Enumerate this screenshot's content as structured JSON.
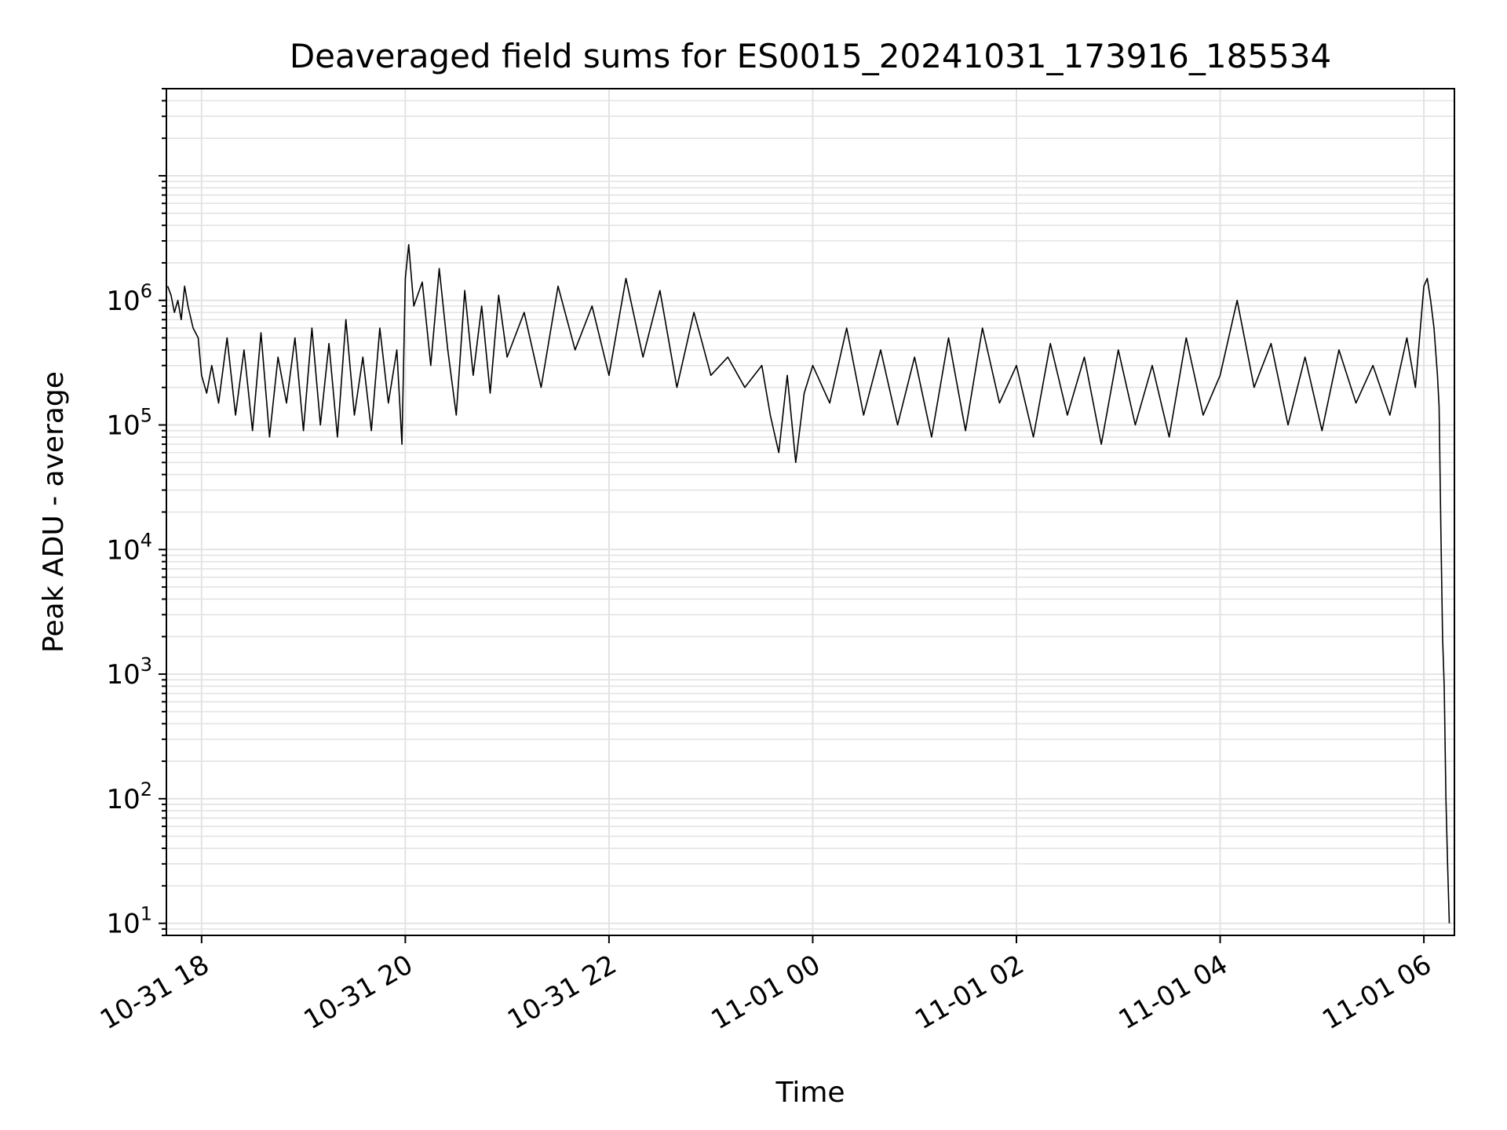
{
  "chart_data": {
    "type": "line",
    "title": "Deaveraged field sums for ES0015_20241031_173916_185534",
    "xlabel": "Time",
    "ylabel": "Peak ADU - average",
    "yscale": "log",
    "grid": true,
    "xlim": [
      "2024-10-31T17:39:16",
      "2024-11-01T06:18:00"
    ],
    "ylim": [
      8,
      50000000
    ],
    "x_ticks": [
      {
        "time": "2024-10-31T18:00",
        "label": "10-31 18"
      },
      {
        "time": "2024-10-31T20:00",
        "label": "10-31 20"
      },
      {
        "time": "2024-10-31T22:00",
        "label": "10-31 22"
      },
      {
        "time": "2024-11-01T00:00",
        "label": "11-01 00"
      },
      {
        "time": "2024-11-01T02:00",
        "label": "11-01 02"
      },
      {
        "time": "2024-11-01T04:00",
        "label": "11-01 04"
      },
      {
        "time": "2024-11-01T06:00",
        "label": "11-01 06"
      }
    ],
    "y_ticks": [
      {
        "value": 10,
        "base": "10",
        "exp": "1"
      },
      {
        "value": 100,
        "base": "10",
        "exp": "2"
      },
      {
        "value": 1000,
        "base": "10",
        "exp": "3"
      },
      {
        "value": 10000,
        "base": "10",
        "exp": "4"
      },
      {
        "value": 100000,
        "base": "10",
        "exp": "5"
      },
      {
        "value": 1000000,
        "base": "10",
        "exp": "6"
      }
    ],
    "series": [
      {
        "color": "#000000",
        "x": [
          "2024-10-31T17:40",
          "2024-10-31T17:42",
          "2024-10-31T17:44",
          "2024-10-31T17:46",
          "2024-10-31T17:48",
          "2024-10-31T17:50",
          "2024-10-31T17:52",
          "2024-10-31T17:55",
          "2024-10-31T17:58",
          "2024-10-31T18:00",
          "2024-10-31T18:03",
          "2024-10-31T18:06",
          "2024-10-31T18:10",
          "2024-10-31T18:15",
          "2024-10-31T18:20",
          "2024-10-31T18:25",
          "2024-10-31T18:30",
          "2024-10-31T18:35",
          "2024-10-31T18:40",
          "2024-10-31T18:45",
          "2024-10-31T18:50",
          "2024-10-31T18:55",
          "2024-10-31T19:00",
          "2024-10-31T19:05",
          "2024-10-31T19:10",
          "2024-10-31T19:15",
          "2024-10-31T19:20",
          "2024-10-31T19:25",
          "2024-10-31T19:30",
          "2024-10-31T19:35",
          "2024-10-31T19:40",
          "2024-10-31T19:45",
          "2024-10-31T19:50",
          "2024-10-31T19:55",
          "2024-10-31T19:58",
          "2024-10-31T20:00",
          "2024-10-31T20:02",
          "2024-10-31T20:05",
          "2024-10-31T20:10",
          "2024-10-31T20:15",
          "2024-10-31T20:20",
          "2024-10-31T20:25",
          "2024-10-31T20:30",
          "2024-10-31T20:35",
          "2024-10-31T20:40",
          "2024-10-31T20:45",
          "2024-10-31T20:50",
          "2024-10-31T20:55",
          "2024-10-31T21:00",
          "2024-10-31T21:10",
          "2024-10-31T21:20",
          "2024-10-31T21:30",
          "2024-10-31T21:40",
          "2024-10-31T21:50",
          "2024-10-31T22:00",
          "2024-10-31T22:10",
          "2024-10-31T22:20",
          "2024-10-31T22:30",
          "2024-10-31T22:40",
          "2024-10-31T22:50",
          "2024-10-31T22:55",
          "2024-10-31T23:00",
          "2024-10-31T23:10",
          "2024-10-31T23:20",
          "2024-10-31T23:30",
          "2024-10-31T23:35",
          "2024-10-31T23:40",
          "2024-10-31T23:45",
          "2024-10-31T23:50",
          "2024-10-31T23:55",
          "2024-11-01T00:00",
          "2024-11-01T00:10",
          "2024-11-01T00:20",
          "2024-11-01T00:30",
          "2024-11-01T00:40",
          "2024-11-01T00:50",
          "2024-11-01T01:00",
          "2024-11-01T01:10",
          "2024-11-01T01:20",
          "2024-11-01T01:30",
          "2024-11-01T01:40",
          "2024-11-01T01:50",
          "2024-11-01T02:00",
          "2024-11-01T02:10",
          "2024-11-01T02:20",
          "2024-11-01T02:30",
          "2024-11-01T02:40",
          "2024-11-01T02:50",
          "2024-11-01T03:00",
          "2024-11-01T03:10",
          "2024-11-01T03:20",
          "2024-11-01T03:30",
          "2024-11-01T03:40",
          "2024-11-01T03:50",
          "2024-11-01T04:00",
          "2024-11-01T04:10",
          "2024-11-01T04:20",
          "2024-11-01T04:30",
          "2024-11-01T04:40",
          "2024-11-01T04:50",
          "2024-11-01T05:00",
          "2024-11-01T05:10",
          "2024-11-01T05:20",
          "2024-11-01T05:30",
          "2024-11-01T05:40",
          "2024-11-01T05:50",
          "2024-11-01T05:55",
          "2024-11-01T06:00",
          "2024-11-01T06:02",
          "2024-11-01T06:04",
          "2024-11-01T06:06",
          "2024-11-01T06:08",
          "2024-11-01T06:09",
          "2024-11-01T06:10",
          "2024-11-01T06:11",
          "2024-11-01T06:12",
          "2024-11-01T06:13",
          "2024-11-01T06:14",
          "2024-11-01T06:15"
        ],
        "y": [
          1300000,
          1100000,
          800000,
          1000000,
          700000,
          1300000,
          900000,
          600000,
          500000,
          250000,
          180000,
          300000,
          150000,
          500000,
          120000,
          400000,
          90000,
          550000,
          80000,
          350000,
          150000,
          500000,
          90000,
          600000,
          100000,
          450000,
          80000,
          700000,
          120000,
          350000,
          90000,
          600000,
          150000,
          400000,
          70000,
          1500000,
          2800000,
          900000,
          1400000,
          300000,
          1800000,
          400000,
          120000,
          1200000,
          250000,
          900000,
          180000,
          1100000,
          350000,
          800000,
          200000,
          1300000,
          400000,
          900000,
          250000,
          1500000,
          350000,
          1200000,
          200000,
          800000,
          450000,
          250000,
          350000,
          200000,
          300000,
          120000,
          60000,
          250000,
          50000,
          180000,
          300000,
          150000,
          600000,
          120000,
          400000,
          100000,
          350000,
          80000,
          500000,
          90000,
          600000,
          150000,
          300000,
          80000,
          450000,
          120000,
          350000,
          70000,
          400000,
          100000,
          300000,
          80000,
          500000,
          120000,
          250000,
          1000000,
          200000,
          450000,
          100000,
          350000,
          90000,
          400000,
          150000,
          300000,
          120000,
          500000,
          200000,
          1300000,
          1500000,
          1000000,
          600000,
          250000,
          140000,
          15000,
          2000,
          800,
          100,
          30,
          10
        ]
      }
    ]
  }
}
